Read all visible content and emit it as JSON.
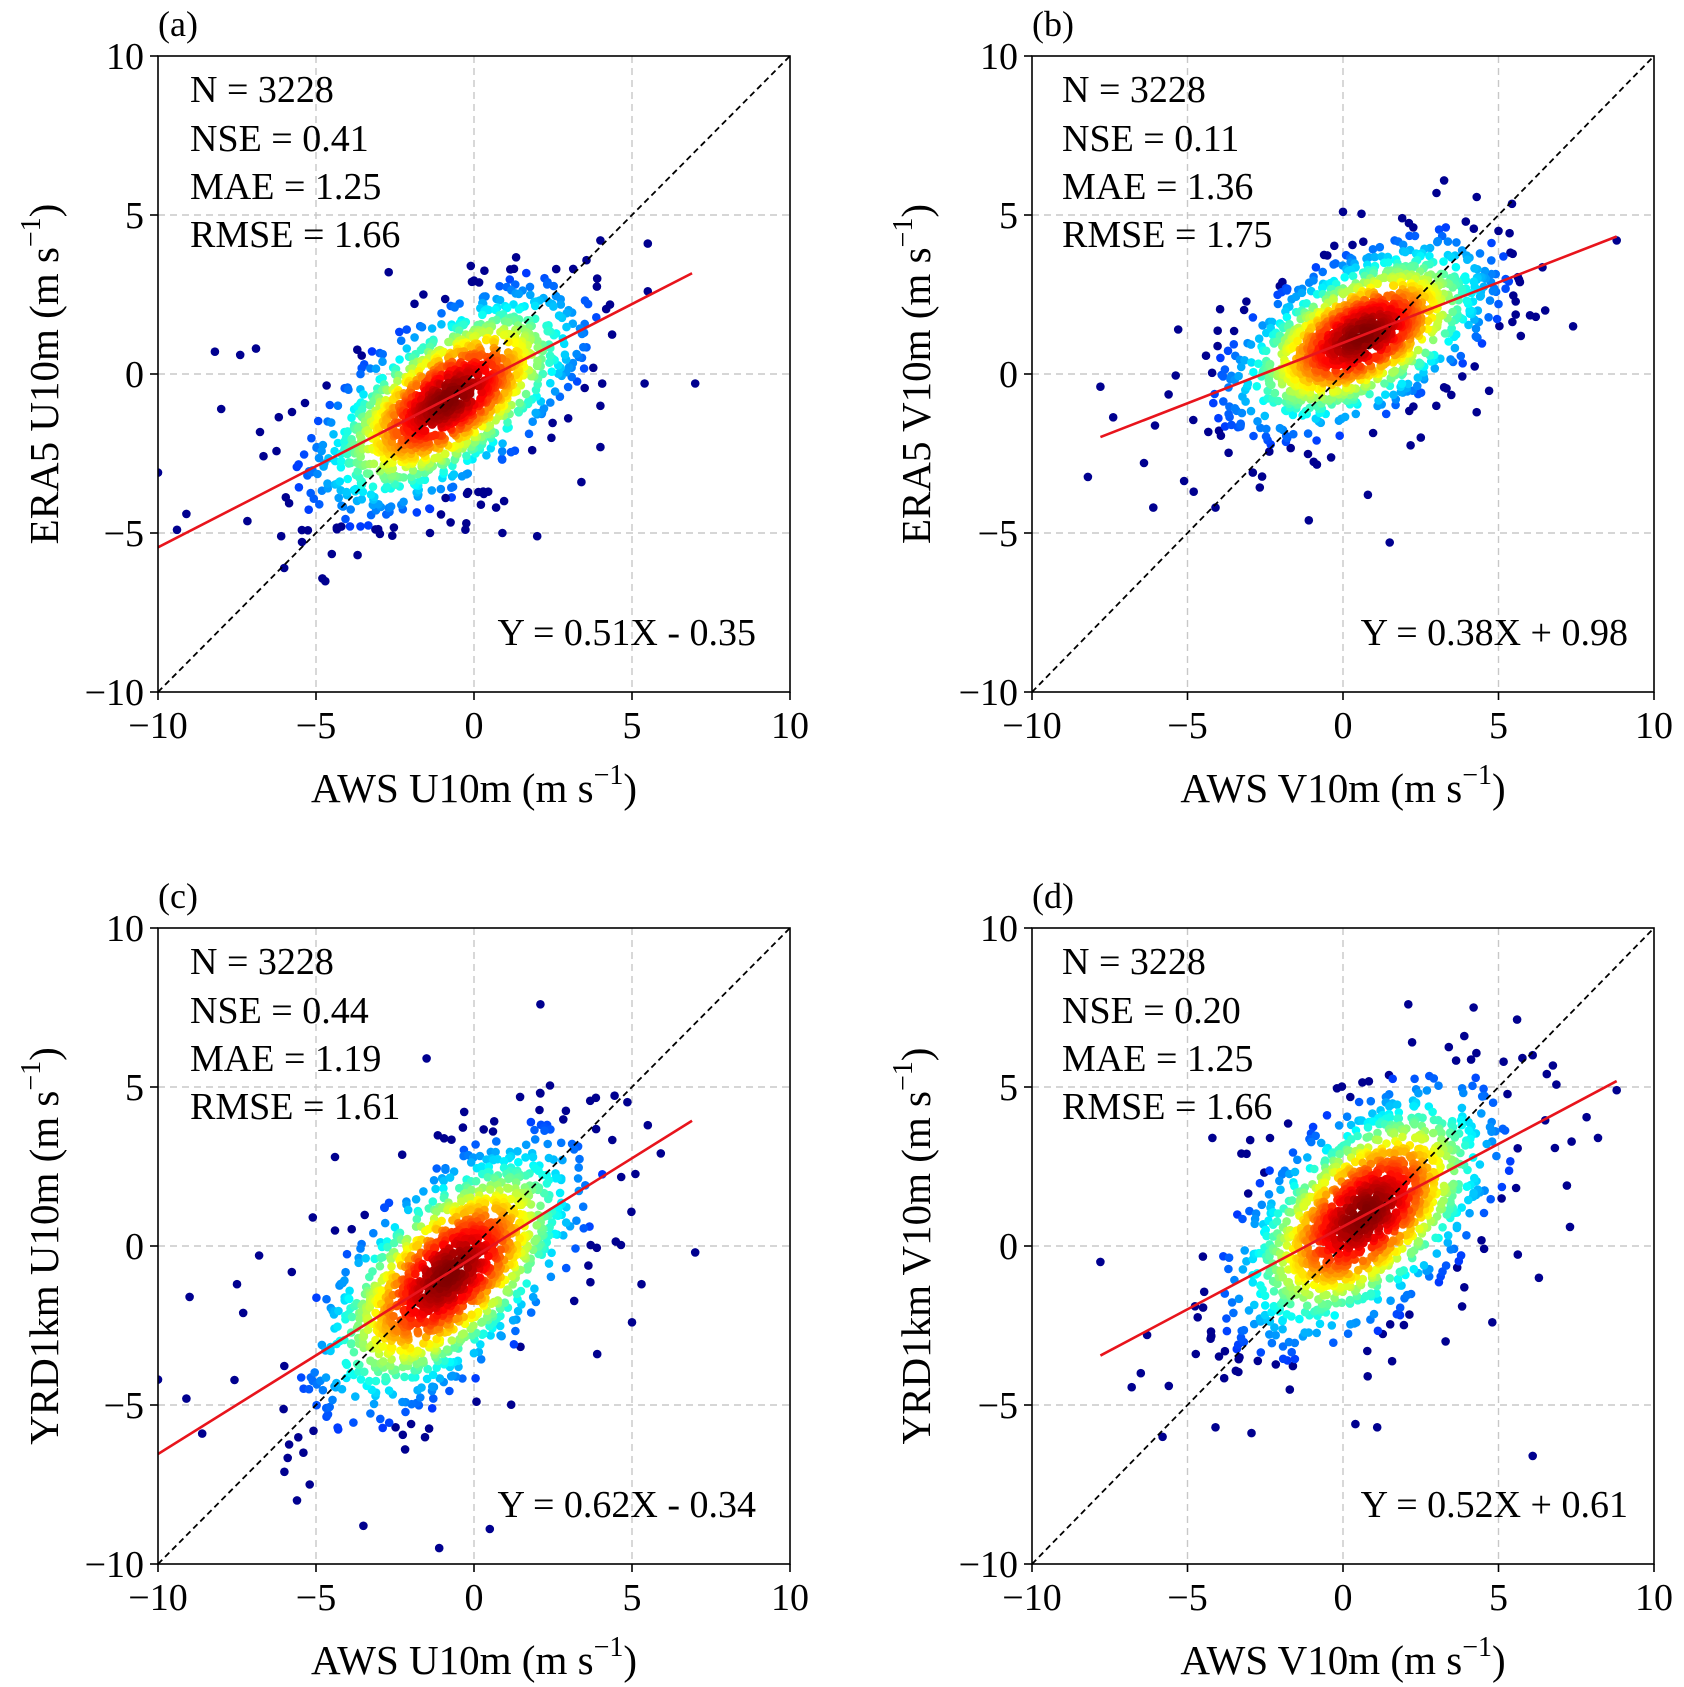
{
  "chart_data": [
    {
      "type": "scatter",
      "panel_label": "(a)",
      "xlabel": "AWS U10m (m s",
      "ylabel": "ERA5 U10m (m s",
      "unit_exponent": "−1",
      "xlim": [
        -10,
        10
      ],
      "ylim": [
        -10,
        10
      ],
      "xticks": [
        -10,
        -5,
        0,
        5,
        10
      ],
      "yticks": [
        -10,
        -5,
        0,
        5,
        10
      ],
      "xtick_labels": [
        "−10",
        "−5",
        "0",
        "5",
        "10"
      ],
      "ytick_labels": [
        "−10",
        "−5",
        "0",
        "5",
        "10"
      ],
      "grid": true,
      "stats": [
        "N = 3228",
        "NSE = 0.41",
        "MAE = 1.25",
        "RMSE = 1.66"
      ],
      "equation": "Y = 0.51X - 0.35",
      "fit": {
        "slope": 0.51,
        "intercept": -0.35,
        "x_range": [
          -10,
          6.9
        ]
      },
      "identity_line": true,
      "density_center": [
        -0.8,
        -0.8
      ],
      "density_spread": [
        2.0,
        1.3
      ],
      "outliers": [
        [
          -10,
          -3.1
        ],
        [
          -9.1,
          -4.4
        ],
        [
          -8.2,
          0.7
        ],
        [
          -8,
          -1.1
        ],
        [
          -7.4,
          0.6
        ],
        [
          -6.9,
          0.8
        ],
        [
          -2.7,
          3.2
        ],
        [
          -1.6,
          2.5
        ],
        [
          -0.1,
          3.4
        ],
        [
          2.6,
          3.3
        ],
        [
          4,
          4.2
        ],
        [
          3.9,
          3.0
        ],
        [
          5.5,
          4.1
        ],
        [
          5.5,
          2.6
        ],
        [
          7.0,
          -0.3
        ],
        [
          5.4,
          -0.3
        ],
        [
          4.0,
          -1.0
        ],
        [
          4.0,
          -2.3
        ],
        [
          3.4,
          -3.4
        ],
        [
          2.0,
          -5.1
        ],
        [
          0.7,
          -4.2
        ],
        [
          0.9,
          -5.0
        ],
        [
          -0.9,
          -3.9
        ],
        [
          -4.2,
          -4.8
        ],
        [
          -6.1,
          -5.1
        ],
        [
          -9.4,
          -4.9
        ]
      ]
    },
    {
      "type": "scatter",
      "panel_label": "(b)",
      "xlabel": "AWS V10m (m s",
      "ylabel": "ERA5 V10m (m s",
      "unit_exponent": "−1",
      "xlim": [
        -10,
        10
      ],
      "ylim": [
        -10,
        10
      ],
      "xticks": [
        -10,
        -5,
        0,
        5,
        10
      ],
      "yticks": [
        -10,
        -5,
        0,
        5,
        10
      ],
      "xtick_labels": [
        "−10",
        "−5",
        "0",
        "5",
        "10"
      ],
      "ytick_labels": [
        "−10",
        "−5",
        "0",
        "5",
        "10"
      ],
      "grid": true,
      "stats": [
        "N = 3228",
        "NSE = 0.11",
        "MAE = 1.36",
        "RMSE = 1.75"
      ],
      "equation": "Y = 0.38X + 0.98",
      "fit": {
        "slope": 0.38,
        "intercept": 0.98,
        "x_range": [
          -7.8,
          8.8
        ]
      },
      "identity_line": true,
      "density_center": [
        0.6,
        1.2
      ],
      "density_spread": [
        2.0,
        1.2
      ],
      "outliers": [
        [
          -7.8,
          -0.4
        ],
        [
          -6.1,
          -4.2
        ],
        [
          -6.4,
          -2.8
        ],
        [
          -5.3,
          1.4
        ],
        [
          -4.1,
          -4.2
        ],
        [
          -4.8,
          -3.7
        ],
        [
          -2.9,
          -3.1
        ],
        [
          0.0,
          5.1
        ],
        [
          1.5,
          -5.3
        ],
        [
          0.8,
          -3.8
        ],
        [
          -1.1,
          -4.6
        ],
        [
          8.8,
          4.2
        ],
        [
          7.4,
          1.5
        ],
        [
          6.2,
          1.8
        ],
        [
          6.5,
          2.0
        ],
        [
          4.3,
          -1.2
        ],
        [
          3.0,
          -1.0
        ],
        [
          5.0,
          4.5
        ],
        [
          2.5,
          -2.0
        ]
      ]
    },
    {
      "type": "scatter",
      "panel_label": "(c)",
      "xlabel": "AWS U10m (m s",
      "ylabel": "YRD1km U10m (m s",
      "unit_exponent": "−1",
      "xlim": [
        -10,
        10
      ],
      "ylim": [
        -10,
        10
      ],
      "xticks": [
        -10,
        -5,
        0,
        5,
        10
      ],
      "yticks": [
        -10,
        -5,
        0,
        5,
        10
      ],
      "xtick_labels": [
        "−10",
        "−5",
        "0",
        "5",
        "10"
      ],
      "ytick_labels": [
        "−10",
        "−5",
        "0",
        "5",
        "10"
      ],
      "grid": true,
      "stats": [
        "N = 3228",
        "NSE = 0.44",
        "MAE = 1.19",
        "RMSE = 1.61"
      ],
      "equation": "Y = 0.62X - 0.34",
      "fit": {
        "slope": 0.62,
        "intercept": -0.34,
        "x_range": [
          -10,
          6.9
        ]
      },
      "identity_line": true,
      "density_center": [
        -0.8,
        -0.9
      ],
      "density_spread": [
        2.0,
        1.6
      ],
      "outliers": [
        [
          -10,
          -4.2
        ],
        [
          -9,
          -1.6
        ],
        [
          -7.5,
          -1.2
        ],
        [
          -6.8,
          -0.3
        ],
        [
          -5.1,
          0.9
        ],
        [
          -4.4,
          2.8
        ],
        [
          -1.5,
          5.9
        ],
        [
          0.6,
          3.6
        ],
        [
          2.1,
          7.6
        ],
        [
          2.1,
          4.8
        ],
        [
          5.5,
          3.8
        ],
        [
          7.0,
          -0.2
        ],
        [
          5.3,
          -1.2
        ],
        [
          5.0,
          -2.4
        ],
        [
          3.9,
          -3.4
        ],
        [
          0.5,
          -8.9
        ],
        [
          -1.1,
          -9.5
        ],
        [
          -3.5,
          -8.8
        ],
        [
          -5.2,
          -7.5
        ],
        [
          -5.6,
          -8.0
        ],
        [
          -6.0,
          -7.1
        ],
        [
          -8.6,
          -5.9
        ],
        [
          -9.1,
          -4.8
        ],
        [
          -5.4,
          -6.5
        ]
      ]
    },
    {
      "type": "scatter",
      "panel_label": "(d)",
      "xlabel": "AWS V10m (m s",
      "ylabel": "YRD1km V10m (m s",
      "unit_exponent": "−1",
      "xlim": [
        -10,
        10
      ],
      "ylim": [
        -10,
        10
      ],
      "xticks": [
        -10,
        -5,
        0,
        5,
        10
      ],
      "yticks": [
        -10,
        -5,
        0,
        5,
        10
      ],
      "xtick_labels": [
        "−10",
        "−5",
        "0",
        "5",
        "10"
      ],
      "ytick_labels": [
        "−10",
        "−5",
        "0",
        "5",
        "10"
      ],
      "grid": true,
      "stats": [
        "N = 3228",
        "NSE = 0.20",
        "MAE = 1.25",
        "RMSE = 1.66"
      ],
      "equation": "Y = 0.52X + 0.61",
      "fit": {
        "slope": 0.52,
        "intercept": 0.61,
        "x_range": [
          -7.8,
          8.8
        ]
      },
      "identity_line": true,
      "density_center": [
        0.7,
        1.0
      ],
      "density_spread": [
        2.0,
        1.6
      ],
      "outliers": [
        [
          -7.8,
          -0.5
        ],
        [
          -6.3,
          -2.8
        ],
        [
          -6.5,
          -4.0
        ],
        [
          -5.8,
          -6.0
        ],
        [
          -4.1,
          -5.7
        ],
        [
          -5.6,
          -4.4
        ],
        [
          -4.2,
          3.4
        ],
        [
          -3.1,
          2.9
        ],
        [
          0.4,
          -5.6
        ],
        [
          1.1,
          -5.7
        ],
        [
          6.1,
          -6.6
        ],
        [
          2.1,
          7.6
        ],
        [
          4.2,
          7.5
        ],
        [
          3.9,
          6.6
        ],
        [
          6.1,
          6.0
        ],
        [
          8.8,
          4.9
        ],
        [
          8.2,
          3.4
        ],
        [
          7.2,
          1.9
        ],
        [
          7.3,
          0.6
        ],
        [
          6.3,
          -1.0
        ],
        [
          4.8,
          -2.4
        ],
        [
          3.3,
          -3.0
        ],
        [
          3.9,
          -1.3
        ]
      ]
    }
  ]
}
